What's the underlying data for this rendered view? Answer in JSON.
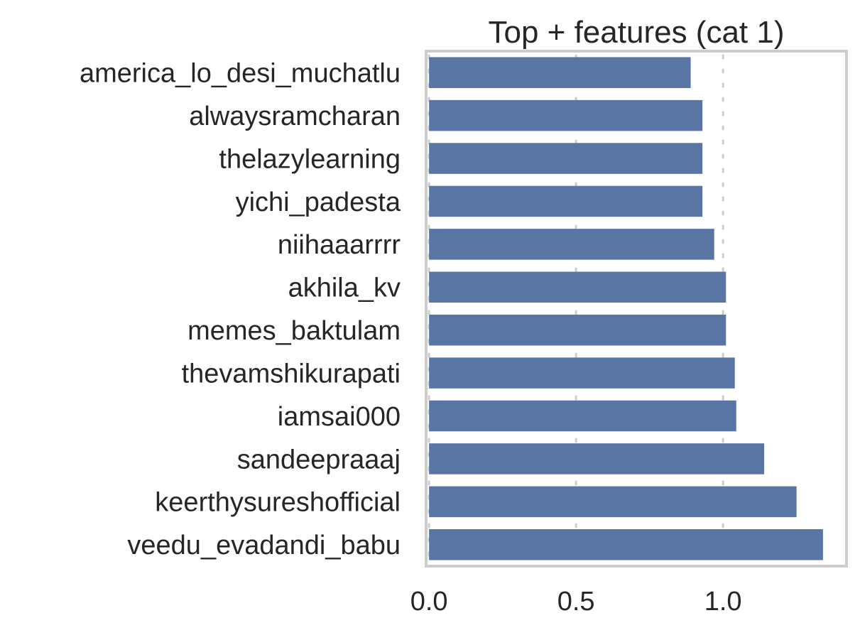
{
  "chart_data": {
    "type": "bar",
    "orientation": "horizontal",
    "title": "Top + features (cat 1)",
    "xlabel": "",
    "ylabel": "",
    "categories": [
      "america_lo_desi_muchatlu",
      "alwaysramcharan",
      "thelazylearning",
      "yichi_padesta",
      "niihaaarrrr",
      "akhila_kv",
      "memes_baktulam",
      "thevamshikurapati",
      "iamsai000",
      "sandeepraaaj",
      "keerthysureshofficial",
      "veedu_evadandi_babu"
    ],
    "values": [
      0.89,
      0.93,
      0.93,
      0.93,
      0.97,
      1.01,
      1.01,
      1.04,
      1.045,
      1.14,
      1.25,
      1.34
    ],
    "xlim": [
      -0.01,
      1.42
    ],
    "xticks": [
      0.0,
      0.5,
      1.0
    ],
    "xtick_labels": [
      "0.0",
      "0.5",
      "1.0"
    ],
    "grid": "x",
    "bar_color": "#5975a4",
    "legend": "none"
  }
}
